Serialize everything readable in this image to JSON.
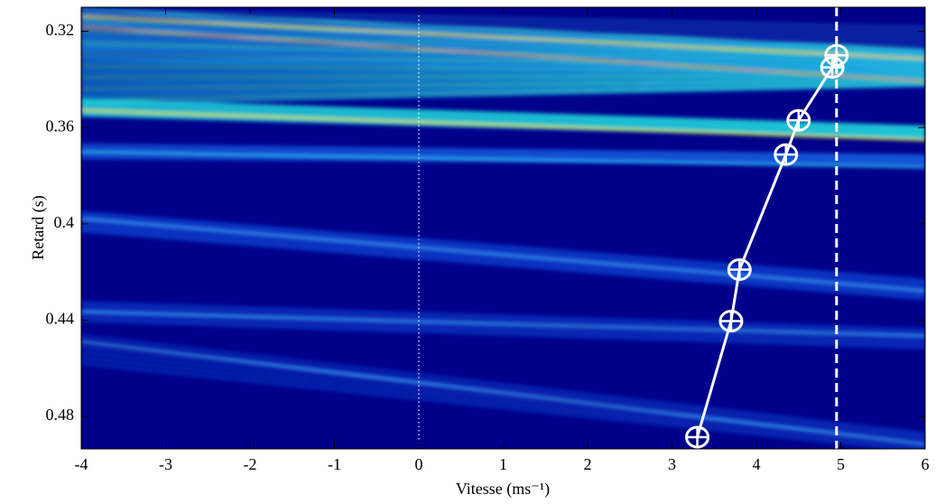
{
  "chart_data": {
    "type": "line",
    "x_label": "Vitesse (ms⁻¹)",
    "y_label": "Retard (s)",
    "x": [
      3.3,
      3.7,
      3.8,
      4.35,
      4.5,
      4.9,
      4.95
    ],
    "values": [
      0.4886,
      0.4404,
      0.419,
      0.3712,
      0.357,
      0.335,
      0.33
    ],
    "color": "#ffffff",
    "marker": "circle-plus",
    "xlim": [
      -4,
      6
    ],
    "xticks": [
      -4,
      -3,
      -2,
      -1,
      0,
      1,
      2,
      3,
      4,
      5,
      6
    ],
    "ylim": [
      0.31,
      0.4935
    ],
    "yticks": [
      0.32,
      0.36,
      0.4,
      0.44,
      0.48
    ],
    "y_reversed": true,
    "reference_lines": [
      {
        "x": 0,
        "style": "dotted"
      },
      {
        "x": 4.95,
        "style": "dashed"
      }
    ]
  }
}
